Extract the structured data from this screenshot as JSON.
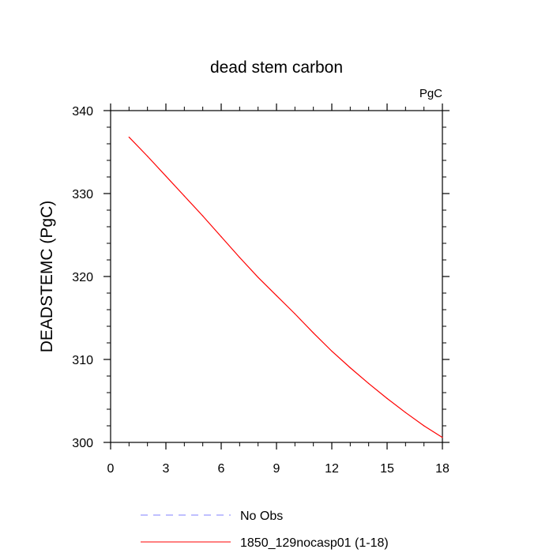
{
  "chart_data": {
    "type": "line",
    "title": "dead stem carbon",
    "units_label": "PgC",
    "ylabel": "DEADSTEMC  (PgC)",
    "xlabel": "",
    "xlim": [
      0,
      18
    ],
    "ylim": [
      300,
      340
    ],
    "x_ticks": [
      0,
      3,
      6,
      9,
      12,
      15,
      18
    ],
    "y_ticks": [
      300,
      310,
      320,
      330,
      340
    ],
    "grid": false,
    "legend_position": "bottom-center",
    "series": [
      {
        "name": "1850_129nocasp01 (1-18)",
        "color": "#ff0000",
        "style": "solid",
        "x": [
          1,
          2,
          3,
          4,
          5,
          6,
          7,
          8,
          9,
          10,
          11,
          12,
          13,
          14,
          15,
          16,
          17,
          18
        ],
        "values": [
          336.8,
          334.5,
          332.1,
          329.7,
          327.3,
          324.8,
          322.3,
          319.9,
          317.7,
          315.5,
          313.2,
          311.0,
          309.0,
          307.1,
          305.3,
          303.6,
          302.0,
          300.6
        ]
      }
    ],
    "legend": [
      {
        "label": "No Obs",
        "color": "#8080ff",
        "style": "dashed"
      },
      {
        "label": "1850_129nocasp01 (1-18)",
        "color": "#ff0000",
        "style": "solid"
      }
    ]
  }
}
